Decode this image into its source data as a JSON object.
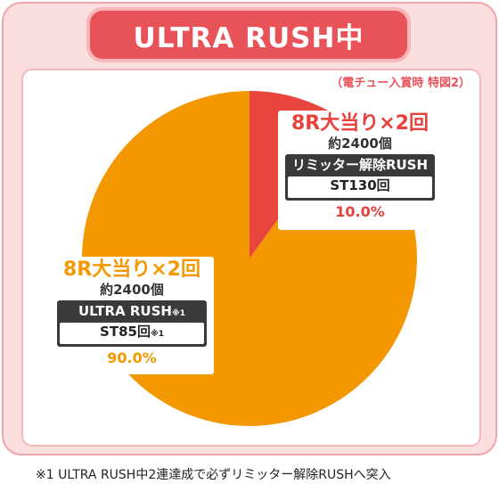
{
  "header": {
    "title": "ULTRA RUSH中"
  },
  "note_top": "（電チュー入賞時 特図2）",
  "footnote": "※1 ULTRA RUSH中2連達成で必ずリミッター解除RUSHへ突入",
  "colors": {
    "red": "#e8453c",
    "orange": "#f39800",
    "frame": "#fbdede",
    "header": "#e8535a"
  },
  "chart_data": {
    "type": "pie",
    "slices": [
      {
        "label": "8R大当り×2回",
        "sub": "約2400個",
        "mode": "リミッター解除RUSH",
        "mode_note": "",
        "st": "ST130回",
        "st_note": "",
        "percent_label": "10.0%",
        "value": 10.0,
        "color": "#e8453c"
      },
      {
        "label": "8R大当り×2回",
        "sub": "約2400個",
        "mode": "ULTRA RUSH",
        "mode_note": "※1",
        "st": "ST85回",
        "st_note": "※1",
        "percent_label": "90.0%",
        "value": 90.0,
        "color": "#f39800"
      }
    ]
  }
}
